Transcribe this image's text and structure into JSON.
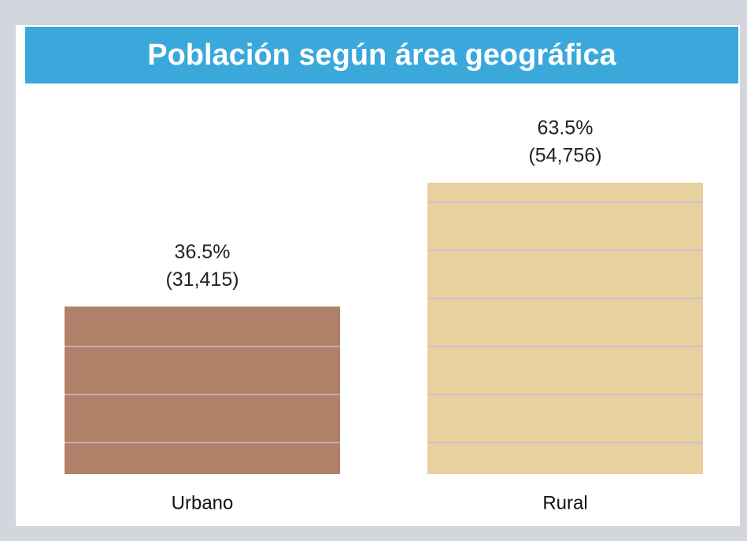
{
  "chart_data": {
    "type": "bar",
    "title": "Población según área geográfica",
    "categories": [
      "Urbano",
      "Rural"
    ],
    "values": [
      36.5,
      63.5
    ],
    "value_labels": [
      "36.5%",
      "63.5%"
    ],
    "populations": [
      31415,
      54756
    ],
    "population_labels": [
      "(31,415)",
      "(54,756)"
    ],
    "colors": [
      "#b08068",
      "#e9d09f"
    ]
  }
}
